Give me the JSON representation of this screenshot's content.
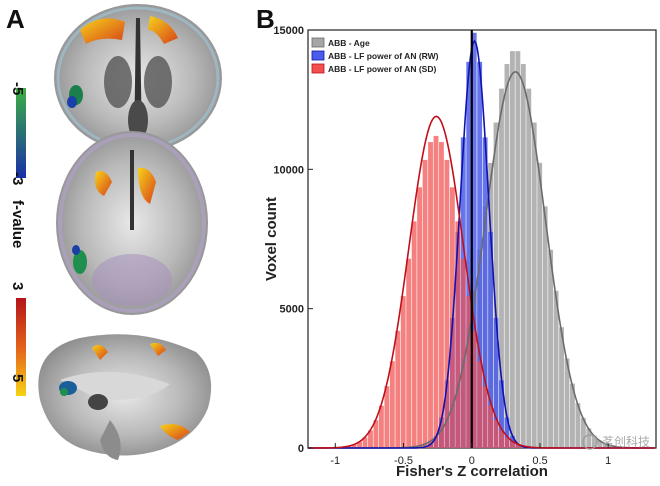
{
  "panels": {
    "a_label": "A",
    "b_label": "B"
  },
  "colorbar": {
    "ticks": [
      "-5",
      "-3",
      "3",
      "5"
    ],
    "title": "f-value",
    "colors": {
      "green": "#3cb043",
      "blue": "#1a2fa8",
      "red": "#b3141b",
      "yellow": "#f5d313"
    }
  },
  "watermark": "茗创科技",
  "chart_data": {
    "type": "histogram",
    "xlabel": "Fisher's Z correlation",
    "ylabel": "Voxel count",
    "xlim": [
      -1.2,
      1.35
    ],
    "ylim": [
      0,
      15000
    ],
    "xticks": [
      "-1",
      "-0.5",
      "0",
      "0.5",
      "1"
    ],
    "yticks": [
      "0",
      "5000",
      "10000",
      "15000"
    ],
    "legend_position": "top-left",
    "series": [
      {
        "name": "ABB - Age",
        "color": "#a6a6a6",
        "line_color": "#6b6b6b",
        "mean": 0.32,
        "sd": 0.22,
        "peak": 13500,
        "hist_max": 14300
      },
      {
        "name": "ABB - LF power of AN (RW)",
        "color": "#4b5de8",
        "line_color": "#1212b0",
        "mean": 0.02,
        "sd": 0.105,
        "peak": 14600,
        "hist_max": 14900
      },
      {
        "name": "ABB - LF power of AN (SD)",
        "color": "#f0504f",
        "line_color": "#c0101a",
        "mean": -0.26,
        "sd": 0.2,
        "peak": 11900,
        "hist_max": 11200
      }
    ],
    "zero_line": 0
  }
}
